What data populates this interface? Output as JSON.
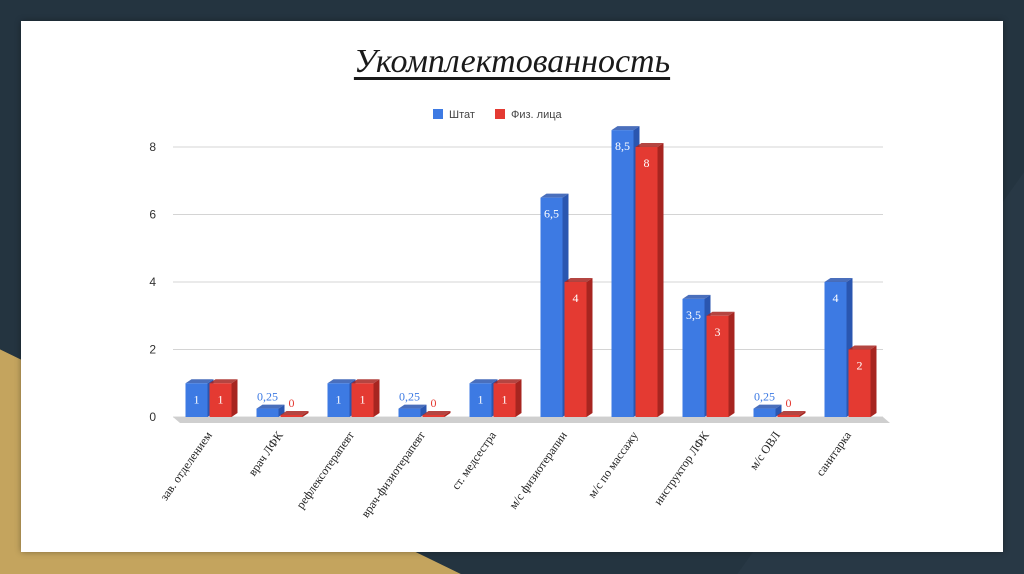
{
  "slide": {
    "title": "Укомплектованность"
  },
  "chart_data": {
    "type": "bar",
    "categories": [
      "зав. отделением",
      "врач ЛФК",
      "рефлексотерапевт",
      "врач-физиотерапевт",
      "ст. медсестра",
      "м/с физиотерапии",
      "м/с по массажу",
      "инструктор ЛФК",
      "м/с ОВЛ",
      "санитарка"
    ],
    "series": [
      {
        "name": "Штат",
        "color": "#3d7ae3",
        "side_color": "#2a56b0",
        "values": [
          1,
          0.25,
          1,
          0.25,
          1,
          6.5,
          8.5,
          3.5,
          0.25,
          4
        ],
        "labels": [
          "1",
          "0,25",
          "1",
          "0,25",
          "1",
          "6,5",
          "8,5",
          "3,5",
          "0,25",
          "4"
        ]
      },
      {
        "name": "Физ. лица",
        "color": "#e43a32",
        "side_color": "#a72520",
        "values": [
          1,
          0,
          1,
          0,
          1,
          4,
          8,
          3,
          0,
          2
        ],
        "labels": [
          "1",
          "0",
          "1",
          "0",
          "1",
          "4",
          "8",
          "3",
          "0",
          "2"
        ]
      }
    ],
    "ylim": [
      0,
      8
    ],
    "yticks": [
      0,
      2,
      4,
      6,
      8
    ],
    "legend": "top-center",
    "grid": true
  }
}
